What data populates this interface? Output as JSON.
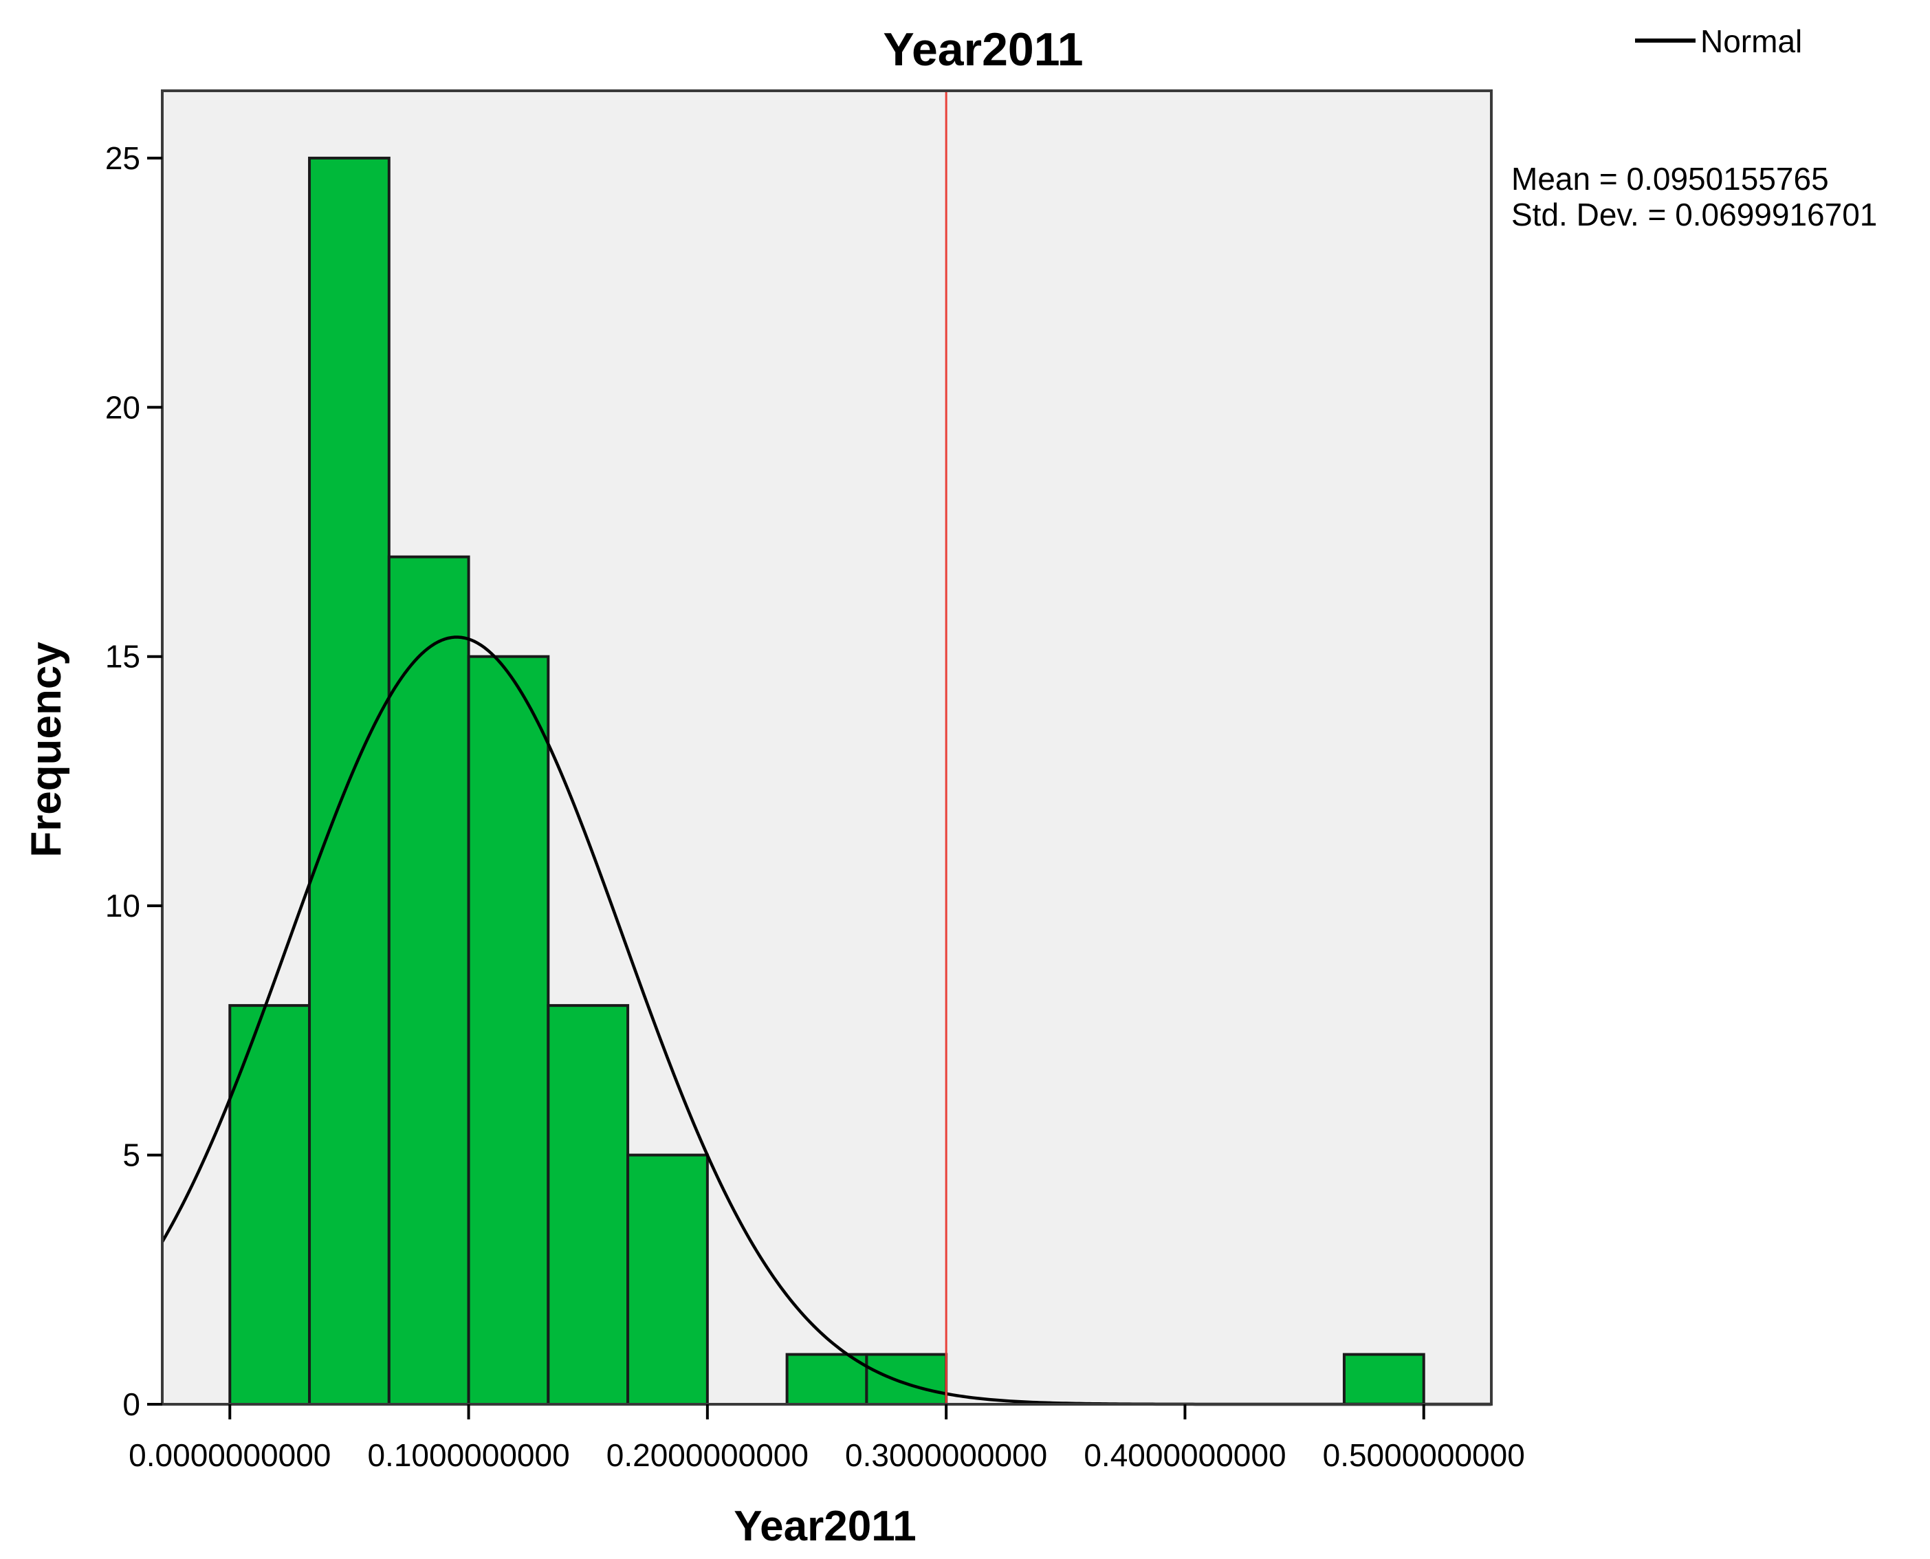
{
  "chart_data": {
    "type": "bar",
    "subtype": "histogram",
    "title": "Year2011",
    "xlabel": "Year2011",
    "ylabel": "Frequency",
    "xlim": [
      -0.0283,
      0.5283
    ],
    "ylim": [
      0,
      26.35
    ],
    "x_ticks": [
      0.0,
      0.1,
      0.2,
      0.3,
      0.4,
      0.5
    ],
    "x_tick_labels": [
      "0.0000000000",
      "0.1000000000",
      "0.2000000000",
      "0.3000000000",
      "0.4000000000",
      "0.5000000000"
    ],
    "y_ticks": [
      0,
      5,
      10,
      15,
      20,
      25
    ],
    "y_tick_labels": [
      "0",
      "5",
      "10",
      "15",
      "20",
      "25"
    ],
    "bin_width": 0.0333333333,
    "bins": [
      {
        "x0": 0.0,
        "x1": 0.0333333333,
        "count": 8
      },
      {
        "x0": 0.0333333333,
        "x1": 0.0666666667,
        "count": 25
      },
      {
        "x0": 0.0666666667,
        "x1": 0.1,
        "count": 17
      },
      {
        "x0": 0.1,
        "x1": 0.1333333333,
        "count": 15
      },
      {
        "x0": 0.1333333333,
        "x1": 0.1666666667,
        "count": 8
      },
      {
        "x0": 0.1666666667,
        "x1": 0.2,
        "count": 5
      },
      {
        "x0": 0.2333333333,
        "x1": 0.2666666667,
        "count": 1
      },
      {
        "x0": 0.2666666667,
        "x1": 0.3,
        "count": 1
      },
      {
        "x0": 0.4666666667,
        "x1": 0.5,
        "count": 1
      }
    ],
    "n": 81,
    "normal_curve": {
      "name": "Normal",
      "mean": 0.0950155765,
      "sd": 0.0699916701
    },
    "reference_line_x": 0.3,
    "stats": {
      "mean_label": "Mean = 0.0950155765",
      "sd_label": "Std. Dev. = 0.0699916701"
    },
    "legend": {
      "entries": [
        "Normal"
      ],
      "placement": "top-right"
    },
    "grid": false,
    "colors": {
      "bar_fill": "#00b93a",
      "bar_stroke": "#1a1a1a",
      "plot_background": "#f0f0f0",
      "curve": "#000000",
      "reference_line": "#e8413a"
    }
  }
}
